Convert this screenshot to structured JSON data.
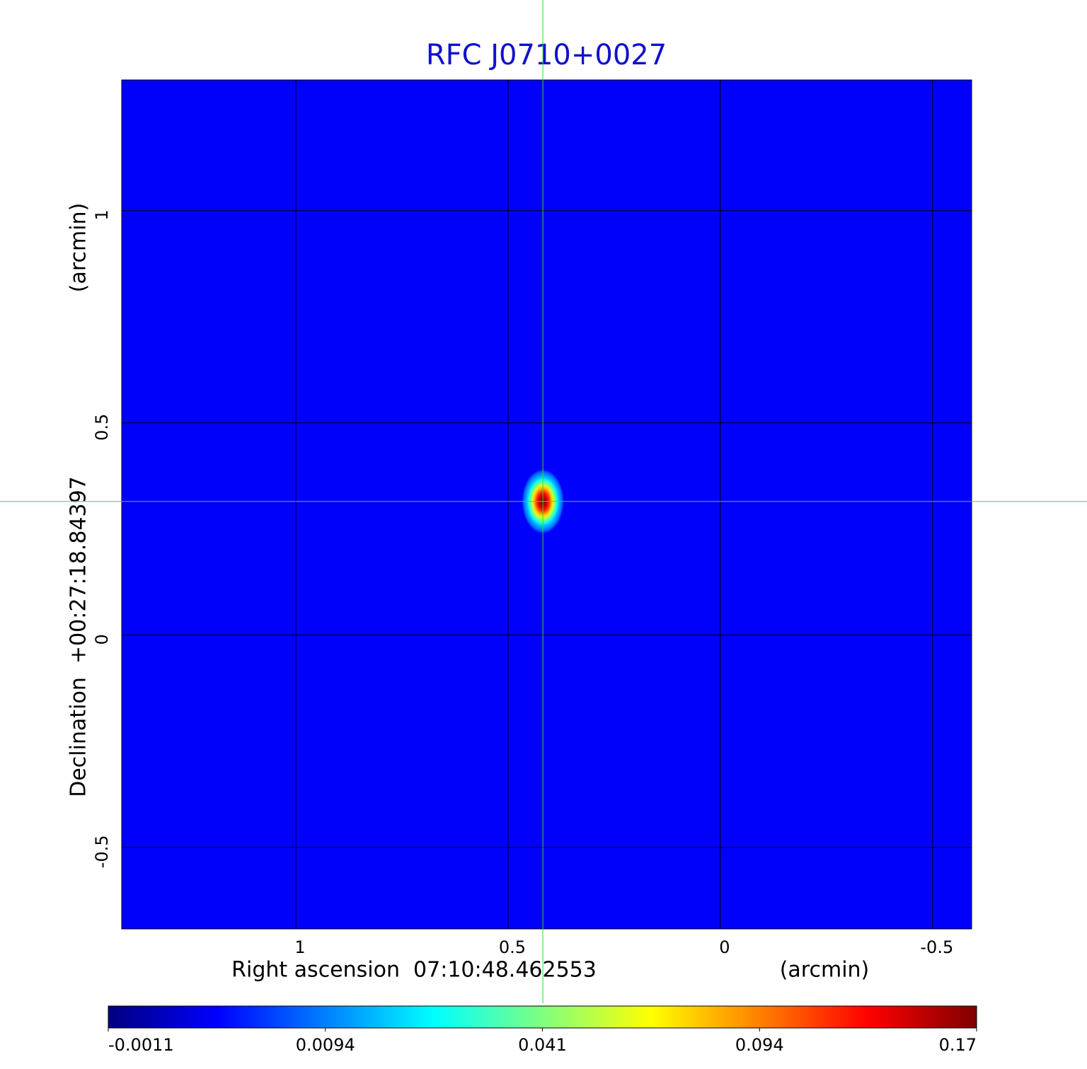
{
  "chart_data": {
    "type": "image",
    "title": "RFC J0710+0027",
    "x_label": "Right ascension  07:10:48.462553",
    "x_unit": "(arcmin)",
    "y_label": "Declination  +00:27:18.84397",
    "y_unit": "(arcmin)",
    "xlim": [
      1.41,
      -0.592
    ],
    "ylim": [
      -0.692,
      1.308
    ],
    "xticks": [
      1.0,
      0.5,
      0.0,
      -0.5
    ],
    "yticks": [
      1.0,
      0.5,
      0.0,
      -0.5
    ],
    "grid": true,
    "background_level": 0.004,
    "source": {
      "x": 0.418,
      "y": 0.315,
      "peak": 0.17
    },
    "crosshair": {
      "x": 0.418,
      "y": 0.315,
      "color": "#33dd33"
    },
    "colormap": "jet",
    "colorbar_ticks": [
      -0.0011,
      0.0094,
      0.041,
      0.094,
      0.17
    ]
  }
}
